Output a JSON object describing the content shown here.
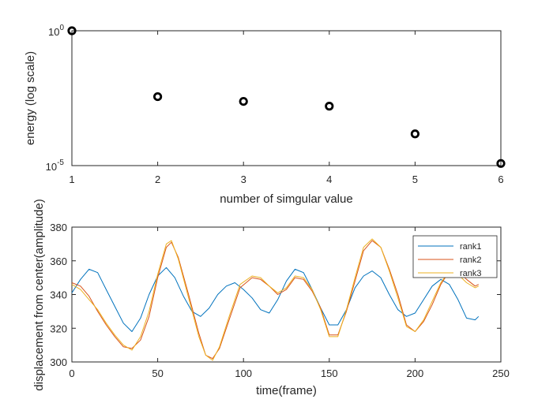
{
  "chart_data": [
    {
      "type": "scatter",
      "title": "",
      "xlabel": "number of simgular value",
      "ylabel": "energy (log scale)",
      "yscale": "log",
      "xlim": [
        1,
        6
      ],
      "ylim": [
        1e-05,
        1
      ],
      "x_ticks": [
        "1",
        "2",
        "3",
        "4",
        "5",
        "6"
      ],
      "y_ticks": [
        {
          "base": "10",
          "exp": "0"
        },
        {
          "base": "10",
          "exp": "-5"
        }
      ],
      "grid": false,
      "marker": "circle",
      "marker_color": "#000000",
      "series": [
        {
          "x": [
            1,
            2,
            3,
            4,
            5,
            6
          ],
          "y": [
            1.0,
            0.0036,
            0.0024,
            0.0016,
            0.00015,
            1.2e-05
          ]
        }
      ]
    },
    {
      "type": "line",
      "title": "",
      "xlabel": "time(frame)",
      "ylabel": "displacement from center(amplitude)",
      "xlim": [
        0,
        250
      ],
      "ylim": [
        300,
        380
      ],
      "x_ticks": [
        "0",
        "50",
        "100",
        "150",
        "200",
        "250"
      ],
      "y_ticks": [
        "300",
        "320",
        "340",
        "360",
        "380"
      ],
      "grid": false,
      "legend_position": "top-right",
      "series": [
        {
          "name": "rank1",
          "color": "#0072BD",
          "points": [
            [
              0,
              341
            ],
            [
              5,
              349
            ],
            [
              10,
              355
            ],
            [
              15,
              353
            ],
            [
              20,
              343
            ],
            [
              25,
              333
            ],
            [
              30,
              323
            ],
            [
              35,
              318
            ],
            [
              40,
              326
            ],
            [
              45,
              340
            ],
            [
              50,
              351
            ],
            [
              55,
              356
            ],
            [
              60,
              350
            ],
            [
              65,
              339
            ],
            [
              70,
              330
            ],
            [
              75,
              327
            ],
            [
              80,
              332
            ],
            [
              85,
              340
            ],
            [
              90,
              345
            ],
            [
              95,
              347
            ],
            [
              100,
              343
            ],
            [
              105,
              338
            ],
            [
              110,
              331
            ],
            [
              115,
              329
            ],
            [
              120,
              337
            ],
            [
              125,
              348
            ],
            [
              130,
              355
            ],
            [
              135,
              353
            ],
            [
              140,
              343
            ],
            [
              145,
              332
            ],
            [
              150,
              322
            ],
            [
              155,
              322
            ],
            [
              160,
              331
            ],
            [
              165,
              344
            ],
            [
              170,
              351
            ],
            [
              175,
              354
            ],
            [
              180,
              350
            ],
            [
              185,
              340
            ],
            [
              190,
              331
            ],
            [
              195,
              327
            ],
            [
              200,
              329
            ],
            [
              205,
              337
            ],
            [
              210,
              345
            ],
            [
              215,
              349
            ],
            [
              220,
              346
            ],
            [
              225,
              337
            ],
            [
              230,
              326
            ],
            [
              235,
              325
            ],
            [
              237,
              327
            ]
          ]
        },
        {
          "name": "rank2",
          "color": "#D95319",
          "points": [
            [
              0,
              347
            ],
            [
              5,
              345
            ],
            [
              10,
              339
            ],
            [
              15,
              330
            ],
            [
              20,
              322
            ],
            [
              25,
              315
            ],
            [
              30,
              309
            ],
            [
              35,
              308
            ],
            [
              40,
              313
            ],
            [
              45,
              327
            ],
            [
              50,
              350
            ],
            [
              55,
              368
            ],
            [
              58,
              371
            ],
            [
              62,
              362
            ],
            [
              68,
              340
            ],
            [
              74,
              317
            ],
            [
              78,
              304
            ],
            [
              82,
              302
            ],
            [
              86,
              308
            ],
            [
              92,
              326
            ],
            [
              98,
              344
            ],
            [
              105,
              350
            ],
            [
              110,
              349
            ],
            [
              115,
              345
            ],
            [
              120,
              340
            ],
            [
              125,
              343
            ],
            [
              130,
              350
            ],
            [
              135,
              349
            ],
            [
              140,
              342
            ],
            [
              145,
              332
            ],
            [
              150,
              316
            ],
            [
              155,
              316
            ],
            [
              160,
              330
            ],
            [
              165,
              348
            ],
            [
              170,
              366
            ],
            [
              175,
              372
            ],
            [
              180,
              368
            ],
            [
              185,
              355
            ],
            [
              190,
              340
            ],
            [
              195,
              322
            ],
            [
              200,
              318
            ],
            [
              205,
              324
            ],
            [
              210,
              334
            ],
            [
              215,
              346
            ],
            [
              220,
              354
            ],
            [
              225,
              354
            ],
            [
              230,
              349
            ],
            [
              235,
              345
            ],
            [
              237,
              346
            ]
          ]
        },
        {
          "name": "rank3",
          "color": "#EDB120",
          "points": [
            [
              0,
              346
            ],
            [
              5,
              343
            ],
            [
              10,
              337
            ],
            [
              15,
              331
            ],
            [
              20,
              323
            ],
            [
              25,
              316
            ],
            [
              30,
              310
            ],
            [
              35,
              307
            ],
            [
              40,
              315
            ],
            [
              45,
              330
            ],
            [
              50,
              352
            ],
            [
              55,
              370
            ],
            [
              58,
              372
            ],
            [
              62,
              361
            ],
            [
              68,
              338
            ],
            [
              74,
              315
            ],
            [
              78,
              304
            ],
            [
              82,
              301
            ],
            [
              86,
              309
            ],
            [
              92,
              328
            ],
            [
              98,
              346
            ],
            [
              105,
              351
            ],
            [
              110,
              350
            ],
            [
              115,
              345
            ],
            [
              120,
              341
            ],
            [
              125,
              344
            ],
            [
              130,
              351
            ],
            [
              135,
              350
            ],
            [
              140,
              343
            ],
            [
              145,
              331
            ],
            [
              150,
              315
            ],
            [
              155,
              315
            ],
            [
              160,
              331
            ],
            [
              165,
              350
            ],
            [
              170,
              368
            ],
            [
              175,
              373
            ],
            [
              180,
              368
            ],
            [
              185,
              354
            ],
            [
              190,
              338
            ],
            [
              195,
              321
            ],
            [
              200,
              318
            ],
            [
              205,
              325
            ],
            [
              210,
              336
            ],
            [
              215,
              347
            ],
            [
              220,
              354
            ],
            [
              225,
              352
            ],
            [
              230,
              347
            ],
            [
              235,
              344
            ],
            [
              237,
              345
            ]
          ]
        }
      ]
    }
  ]
}
